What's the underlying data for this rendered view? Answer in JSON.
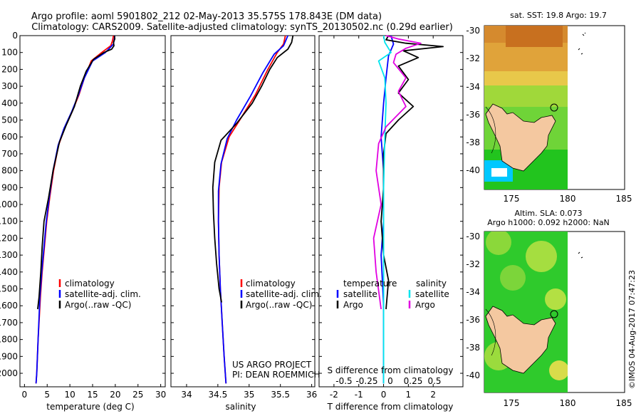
{
  "header": {
    "line1": "Argo profile: aoml 5901802_212 02-May-2013 35.575S 178.843E (DM data)",
    "line2": "Climatology: CARS2009. Satellite-adjusted climatology: synTS_20130502.nc (0.29d earlier)"
  },
  "colors": {
    "climatology": "#ff0000",
    "satellite": "#0000ff",
    "argo": "#000000",
    "sal_satellite": "#00e5ee",
    "sal_argo": "#e100e1",
    "land": "#f4c8a0",
    "ocean_green": "#1fc31f",
    "sst_warm": "#d2691e"
  },
  "footer": {
    "project": "US ARGO PROJECT",
    "pi": "PI: DEAN ROEMMICH",
    "credit": "©IMOS 04-Aug-2017 07:47:23"
  },
  "legends": {
    "temp": [
      "climatology",
      "satellite-adj. clim.",
      "Argo(..raw -QC)"
    ],
    "sal": [
      "climatology",
      "satellite-adj. clim.",
      "Argo(..raw -QC)"
    ],
    "diff": {
      "temperature": "temperature",
      "salinity": "salinity",
      "t_satellite": "satellite",
      "t_argo": "Argo",
      "s_satellite": "satellite",
      "s_argo": "Argo"
    }
  },
  "maps": {
    "sst_title": "sat. SST: 19.8 Argo: 19.7",
    "sla_title1": "Altim. SLA: 0.073",
    "sla_title2": "Argo h1000: 0.092 h2000: NaN"
  },
  "chart_data": [
    {
      "type": "line",
      "panel": "temperature",
      "xlabel": "temperature (deg C)",
      "ylabel": "",
      "xlim": [
        -1,
        31
      ],
      "ylim": [
        2080,
        0
      ],
      "xticks": [
        0,
        5,
        10,
        15,
        20,
        25,
        30
      ],
      "yticks": [
        0,
        100,
        200,
        300,
        400,
        500,
        600,
        700,
        800,
        900,
        1000,
        1100,
        1200,
        1300,
        1400,
        1500,
        1600,
        1700,
        1800,
        1900,
        2000
      ],
      "series": [
        {
          "name": "climatology",
          "color": "#ff0000",
          "points": [
            [
              19.6,
              0
            ],
            [
              19.4,
              30
            ],
            [
              19.0,
              60
            ],
            [
              17.0,
              100
            ],
            [
              14.7,
              150
            ],
            [
              13.2,
              250
            ],
            [
              12.0,
              350
            ],
            [
              10.5,
              450
            ],
            [
              8.8,
              550
            ],
            [
              7.5,
              650
            ],
            [
              6.4,
              800
            ],
            [
              5.6,
              950
            ],
            [
              4.9,
              1100
            ],
            [
              4.4,
              1250
            ],
            [
              3.9,
              1400
            ],
            [
              3.5,
              1550
            ],
            [
              3.0,
              1800
            ],
            [
              2.7,
              2000
            ],
            [
              2.55,
              2060
            ]
          ]
        },
        {
          "name": "satellite-adj. clim.",
          "color": "#0000ff",
          "points": [
            [
              19.9,
              0
            ],
            [
              19.6,
              50
            ],
            [
              17.8,
              100
            ],
            [
              15.0,
              150
            ],
            [
              13.2,
              250
            ],
            [
              11.9,
              350
            ],
            [
              10.4,
              450
            ],
            [
              8.7,
              550
            ],
            [
              7.4,
              650
            ],
            [
              6.3,
              800
            ],
            [
              5.5,
              950
            ],
            [
              4.8,
              1100
            ],
            [
              4.3,
              1250
            ],
            [
              3.8,
              1400
            ],
            [
              3.4,
              1550
            ],
            [
              3.0,
              1800
            ],
            [
              2.7,
              2000
            ],
            [
              2.55,
              2060
            ]
          ]
        },
        {
          "name": "Argo(..raw -QC)",
          "color": "#000000",
          "points": [
            [
              19.8,
              0
            ],
            [
              19.9,
              20
            ],
            [
              19.6,
              40
            ],
            [
              19.7,
              60
            ],
            [
              19.2,
              80
            ],
            [
              17.5,
              100
            ],
            [
              15.2,
              140
            ],
            [
              13.6,
              210
            ],
            [
              12.3,
              300
            ],
            [
              11.0,
              420
            ],
            [
              9.2,
              530
            ],
            [
              7.7,
              630
            ],
            [
              6.3,
              800
            ],
            [
              5.3,
              960
            ],
            [
              4.3,
              1100
            ],
            [
              3.9,
              1250
            ],
            [
              3.6,
              1400
            ],
            [
              3.2,
              1550
            ],
            [
              2.9,
              1620
            ]
          ]
        }
      ]
    },
    {
      "type": "line",
      "panel": "salinity",
      "xlabel": "salinity",
      "xlim": [
        33.75,
        36.05
      ],
      "ylim": [
        2080,
        0
      ],
      "xticks": [
        34,
        34.5,
        35,
        35.5,
        36
      ],
      "series": [
        {
          "name": "climatology",
          "color": "#ff0000",
          "points": [
            [
              35.58,
              0
            ],
            [
              35.55,
              50
            ],
            [
              35.45,
              100
            ],
            [
              35.3,
              200
            ],
            [
              35.1,
              350
            ],
            [
              34.85,
              500
            ],
            [
              34.68,
              600
            ],
            [
              34.56,
              750
            ],
            [
              34.52,
              900
            ],
            [
              34.51,
              1100
            ],
            [
              34.52,
              1300
            ],
            [
              34.54,
              1500
            ],
            [
              34.57,
              1700
            ],
            [
              34.6,
              1900
            ],
            [
              34.63,
              2060
            ]
          ]
        },
        {
          "name": "satellite-adj. clim.",
          "color": "#0000ff",
          "points": [
            [
              35.62,
              0
            ],
            [
              35.55,
              60
            ],
            [
              35.4,
              110
            ],
            [
              35.22,
              220
            ],
            [
              35.02,
              360
            ],
            [
              34.8,
              500
            ],
            [
              34.65,
              610
            ],
            [
              34.55,
              760
            ],
            [
              34.51,
              920
            ],
            [
              34.51,
              1100
            ],
            [
              34.52,
              1300
            ],
            [
              34.54,
              1500
            ],
            [
              34.57,
              1700
            ],
            [
              34.6,
              1900
            ],
            [
              34.63,
              2060
            ]
          ]
        },
        {
          "name": "Argo(..raw -QC)",
          "color": "#000000",
          "points": [
            [
              35.7,
              0
            ],
            [
              35.68,
              40
            ],
            [
              35.62,
              80
            ],
            [
              35.45,
              130
            ],
            [
              35.33,
              200
            ],
            [
              35.2,
              300
            ],
            [
              35.05,
              400
            ],
            [
              34.8,
              520
            ],
            [
              34.55,
              620
            ],
            [
              34.45,
              750
            ],
            [
              34.42,
              900
            ],
            [
              34.43,
              1050
            ],
            [
              34.45,
              1200
            ],
            [
              34.48,
              1350
            ],
            [
              34.52,
              1500
            ],
            [
              34.56,
              1580
            ]
          ]
        }
      ]
    },
    {
      "type": "line",
      "panel": "difference",
      "xlabel": "T difference from climatology",
      "x2label": "S difference from climatology",
      "xlim": [
        -2.6,
        3.2
      ],
      "ylim": [
        2080,
        0
      ],
      "xticks": [
        -2,
        -1,
        0,
        1,
        2
      ],
      "x2ticks": [
        "-0.5",
        "-0.25",
        "0",
        "0.25",
        "0.5"
      ],
      "series": [
        {
          "name": "temperature satellite",
          "color": "#0000ff",
          "points": [
            [
              0.3,
              0
            ],
            [
              0.4,
              50
            ],
            [
              0.2,
              120
            ],
            [
              0.1,
              250
            ],
            [
              0.0,
              400
            ],
            [
              -0.1,
              600
            ],
            [
              0.0,
              800
            ],
            [
              0.0,
              1100
            ],
            [
              -0.1,
              1300
            ],
            [
              0.0,
              1600
            ],
            [
              0.0,
              2060
            ]
          ]
        },
        {
          "name": "temperature Argo",
          "color": "#000000",
          "points": [
            [
              0.2,
              0
            ],
            [
              0.1,
              25
            ],
            [
              0.9,
              45
            ],
            [
              2.4,
              65
            ],
            [
              0.8,
              90
            ],
            [
              1.4,
              130
            ],
            [
              0.6,
              180
            ],
            [
              1.0,
              260
            ],
            [
              0.6,
              340
            ],
            [
              1.2,
              420
            ],
            [
              0.6,
              500
            ],
            [
              0.1,
              580
            ],
            [
              0.0,
              700
            ],
            [
              0.0,
              900
            ],
            [
              -0.1,
              1100
            ],
            [
              0.0,
              1300
            ],
            [
              0.2,
              1450
            ],
            [
              0.1,
              1620
            ]
          ]
        },
        {
          "name": "salinity satellite",
          "color": "#00e5ee",
          "points": [
            [
              0.0,
              0
            ],
            [
              0.05,
              40
            ],
            [
              0.3,
              100
            ],
            [
              -0.2,
              150
            ],
            [
              0.05,
              250
            ],
            [
              0.1,
              400
            ],
            [
              0.05,
              600
            ],
            [
              0.0,
              900
            ],
            [
              0.0,
              1200
            ],
            [
              0.0,
              1500
            ],
            [
              0.0,
              2060
            ]
          ]
        },
        {
          "name": "salinity Argo",
          "color": "#e100e1",
          "points": [
            [
              0.1,
              0
            ],
            [
              0.6,
              20
            ],
            [
              1.5,
              45
            ],
            [
              0.9,
              75
            ],
            [
              0.5,
              110
            ],
            [
              0.4,
              160
            ],
            [
              0.9,
              250
            ],
            [
              0.6,
              330
            ],
            [
              0.9,
              420
            ],
            [
              0.1,
              540
            ],
            [
              -0.2,
              640
            ],
            [
              -0.3,
              800
            ],
            [
              -0.1,
              1000
            ],
            [
              -0.4,
              1200
            ],
            [
              -0.3,
              1400
            ],
            [
              -0.1,
              1620
            ]
          ]
        }
      ]
    }
  ]
}
